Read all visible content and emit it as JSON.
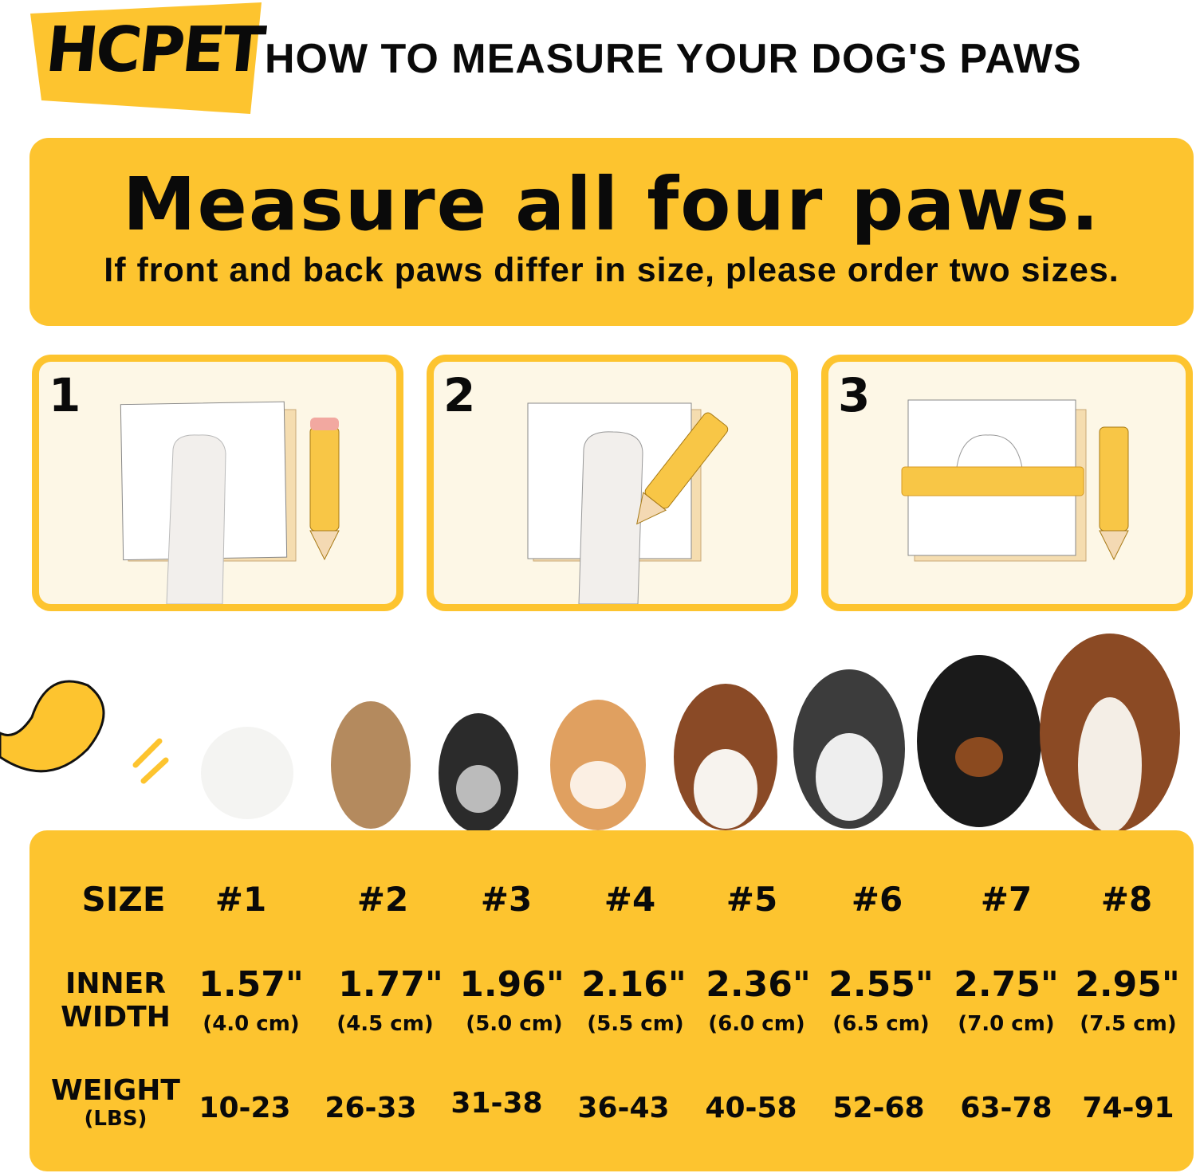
{
  "brand": {
    "logo_text": "HCPET",
    "accent": "#FDC42F",
    "panel_bg": "#FDF7E6"
  },
  "header": {
    "title": "HOW TO MEASURE YOUR DOG'S PAWS"
  },
  "banner": {
    "headline": "Measure all four paws.",
    "subline": "If front and back paws differ in size, please order two sizes."
  },
  "steps": [
    {
      "number": "1"
    },
    {
      "number": "2"
    },
    {
      "number": "3"
    }
  ],
  "size_table": {
    "row_labels": {
      "size": "SIZE",
      "inner_width_1": "INNER",
      "inner_width_2": "WIDTH",
      "weight_1": "WEIGHT",
      "weight_2": "(LBS)"
    },
    "columns": [
      {
        "size": "#1",
        "inches": "1.57\"",
        "cm": "(4.0 cm)",
        "weight": "10-23"
      },
      {
        "size": "#2",
        "inches": "1.77\"",
        "cm": "(4.5 cm)",
        "weight": "26-33"
      },
      {
        "size": "#3",
        "inches": "1.96\"",
        "cm": "(5.0 cm)",
        "weight": "31-38"
      },
      {
        "size": "#4",
        "inches": "2.16\"",
        "cm": "(5.5 cm)",
        "weight": "36-43"
      },
      {
        "size": "#5",
        "inches": "2.36\"",
        "cm": "(6.0 cm)",
        "weight": "40-58"
      },
      {
        "size": "#6",
        "inches": "2.55\"",
        "cm": "(6.5 cm)",
        "weight": "52-68"
      },
      {
        "size": "#7",
        "inches": "2.75\"",
        "cm": "(7.0 cm)",
        "weight": "63-78"
      },
      {
        "size": "#8",
        "inches": "2.95\"",
        "cm": "(7.5 cm)",
        "weight": "74-91"
      }
    ]
  }
}
